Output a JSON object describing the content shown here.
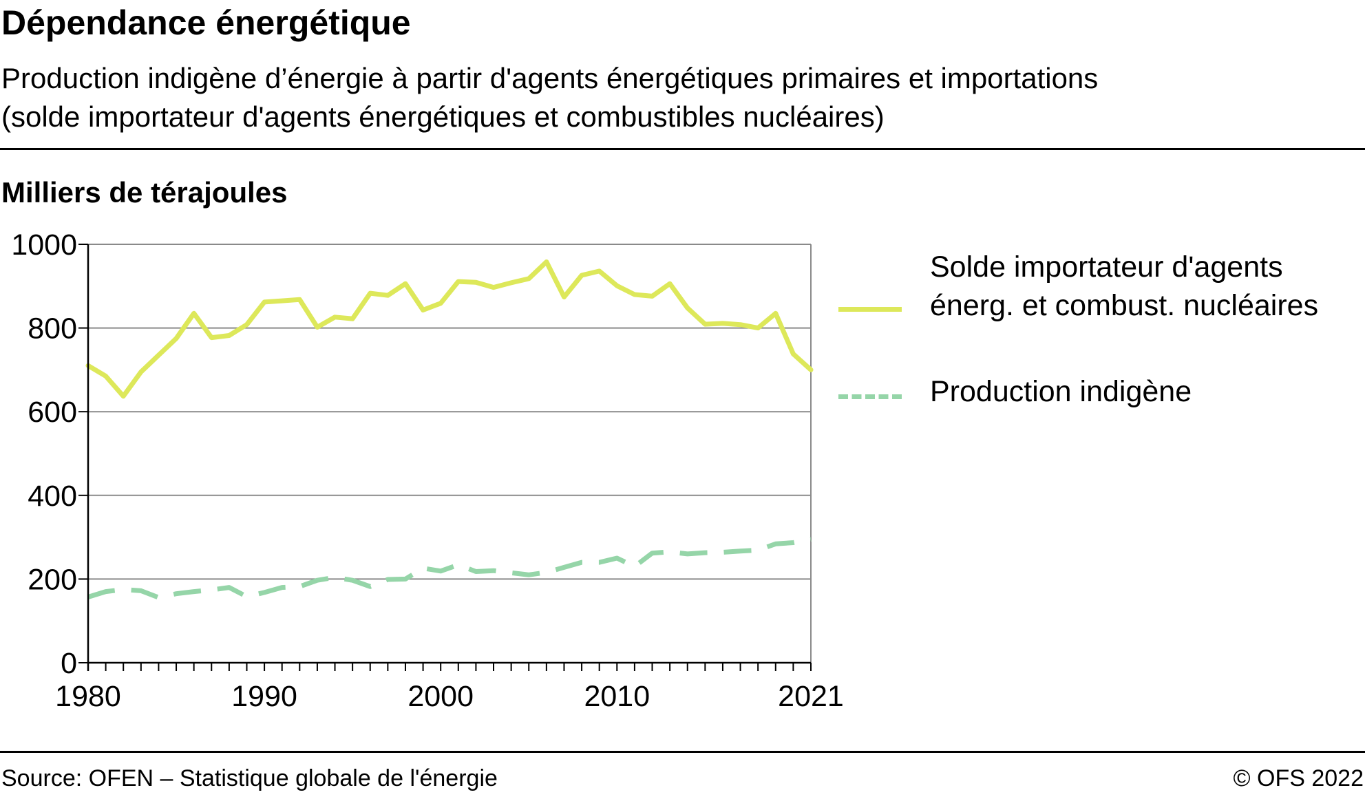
{
  "header": {
    "title": "Dépendance énergétique",
    "subtitle_line1": "Production indigène d’énergie à partir d'agents énergétiques primaires et importations",
    "subtitle_line2": "(solde importateur d'agents énergétiques et combustibles nucléaires)"
  },
  "unit_label": "Milliers de térajoules",
  "footer": {
    "source": "Source: OFEN – Statistique globale de l'énergie",
    "copyright": "© OFS 2022"
  },
  "chart_data": {
    "type": "line",
    "title": "Dépendance énergétique",
    "ylabel": "Milliers de térajoules",
    "xlabel": "",
    "ylim": [
      0,
      1000
    ],
    "xlim": [
      1980,
      2021
    ],
    "y_ticks": [
      0,
      200,
      400,
      600,
      800,
      1000
    ],
    "x_tick_labels": [
      1980,
      1990,
      2000,
      2010,
      2021
    ],
    "grid": "horizontal",
    "legend_position": "right",
    "x": [
      1980,
      1981,
      1982,
      1983,
      1984,
      1985,
      1986,
      1987,
      1988,
      1989,
      1990,
      1991,
      1992,
      1993,
      1994,
      1995,
      1996,
      1997,
      1998,
      1999,
      2000,
      2001,
      2002,
      2003,
      2004,
      2005,
      2006,
      2007,
      2008,
      2009,
      2010,
      2011,
      2012,
      2013,
      2014,
      2015,
      2016,
      2017,
      2018,
      2019,
      2020,
      2021
    ],
    "series": [
      {
        "name": "Solde importateur d'agents énerg. et combust. nucléaires",
        "color": "#dde85a",
        "style": "solid",
        "values": [
          710,
          685,
          637,
          695,
          735,
          775,
          835,
          777,
          782,
          808,
          862,
          865,
          868,
          802,
          826,
          822,
          883,
          878,
          906,
          843,
          859,
          911,
          909,
          897,
          908,
          918,
          958,
          874,
          926,
          936,
          901,
          880,
          876,
          906,
          848,
          809,
          811,
          808,
          800,
          835,
          738,
          700
        ]
      },
      {
        "name": "Production indigène",
        "color": "#95d5a8",
        "style": "dashed",
        "values": [
          157,
          170,
          175,
          172,
          156,
          165,
          170,
          174,
          180,
          158,
          168,
          180,
          182,
          197,
          204,
          197,
          182,
          199,
          200,
          226,
          219,
          234,
          218,
          220,
          215,
          210,
          216,
          228,
          240,
          240,
          250,
          230,
          262,
          265,
          260,
          263,
          264,
          267,
          269,
          284,
          287,
          295
        ]
      }
    ]
  }
}
